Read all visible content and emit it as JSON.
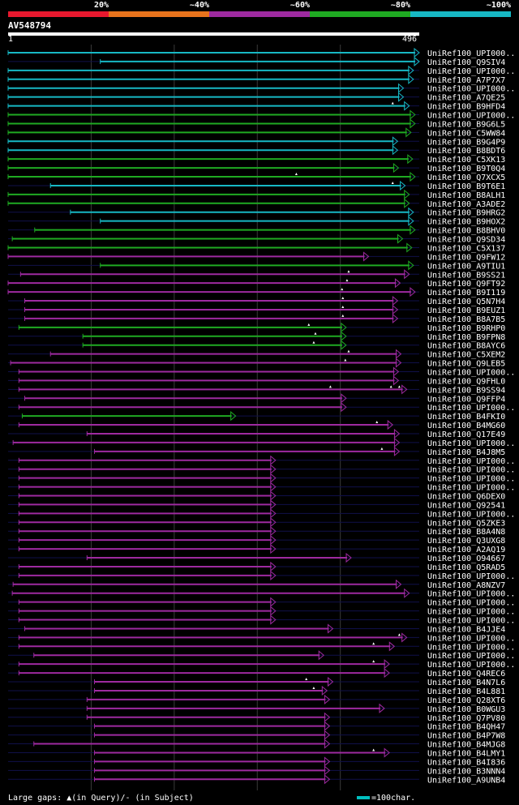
{
  "scale_bar": {
    "labels": [
      "20%",
      "~40%",
      "~60%",
      "~80%",
      "~100%"
    ],
    "colors": [
      "#e8182e",
      "#e8731c",
      "#9e2aa0",
      "#1faa22",
      "#17b8c4"
    ]
  },
  "query": {
    "id": "AV548794",
    "start": "1",
    "end": "496"
  },
  "footer": {
    "gaps_label": "Large gaps: ▲(in Query)/- (in Subject)",
    "legend_label": "=100char."
  },
  "chart_data": {
    "type": "alignment",
    "query_length": 496,
    "identity_colors": {
      "c": "#17b8c4",
      "g": "#1faa22",
      "p": "#9e2aa0"
    },
    "hits": [
      {
        "name": "UniRef100_UPI000..",
        "start": 1,
        "end": 496,
        "c": "c",
        "gaps": []
      },
      {
        "name": "UniRef100_Q9SIV4",
        "start": 112,
        "end": 496,
        "c": "c",
        "gaps": []
      },
      {
        "name": "UniRef100_UPI000..",
        "start": 1,
        "end": 489,
        "c": "c",
        "gaps": []
      },
      {
        "name": "UniRef100_A7P7X7",
        "start": 1,
        "end": 489,
        "c": "c",
        "gaps": []
      },
      {
        "name": "UniRef100_UPI000..",
        "start": 1,
        "end": 477,
        "c": "c",
        "gaps": []
      },
      {
        "name": "UniRef100_A7QE25",
        "start": 1,
        "end": 477,
        "c": "c",
        "gaps": []
      },
      {
        "name": "UniRef100_B9HFD4",
        "start": 1,
        "end": 484,
        "c": "c",
        "gaps": [
          464
        ]
      },
      {
        "name": "UniRef100_UPI000..",
        "start": 1,
        "end": 491,
        "c": "g",
        "gaps": []
      },
      {
        "name": "UniRef100_B9G6L5",
        "start": 1,
        "end": 491,
        "c": "g",
        "gaps": []
      },
      {
        "name": "UniRef100_C5WW84",
        "start": 1,
        "end": 486,
        "c": "g",
        "gaps": []
      },
      {
        "name": "UniRef100_B9G4P9",
        "start": 1,
        "end": 470,
        "c": "c",
        "gaps": []
      },
      {
        "name": "UniRef100_B8BDT6",
        "start": 1,
        "end": 470,
        "c": "c",
        "gaps": []
      },
      {
        "name": "UniRef100_C5XK13",
        "start": 1,
        "end": 488,
        "c": "g",
        "gaps": []
      },
      {
        "name": "UniRef100_B9T0Q4",
        "start": 1,
        "end": 471,
        "c": "g",
        "gaps": []
      },
      {
        "name": "UniRef100_Q7XCX5",
        "start": 1,
        "end": 491,
        "c": "g",
        "gaps": [
          348
        ]
      },
      {
        "name": "UniRef100_B9T6E1",
        "start": 52,
        "end": 479,
        "c": "c",
        "gaps": [
          464
        ]
      },
      {
        "name": "UniRef100_B8ALH1",
        "start": 1,
        "end": 484,
        "c": "g",
        "gaps": []
      },
      {
        "name": "UniRef100_A3ADE2",
        "start": 1,
        "end": 484,
        "c": "g",
        "gaps": []
      },
      {
        "name": "UniRef100_B9HRG2",
        "start": 76,
        "end": 489,
        "c": "c",
        "gaps": []
      },
      {
        "name": "UniRef100_B9HOX2",
        "start": 112,
        "end": 489,
        "c": "c",
        "gaps": []
      },
      {
        "name": "UniRef100_B8BHV0",
        "start": 33,
        "end": 491,
        "c": "g",
        "gaps": []
      },
      {
        "name": "UniRef100_Q9SD34",
        "start": 6,
        "end": 476,
        "c": "g",
        "gaps": []
      },
      {
        "name": "UniRef100_C5X137",
        "start": 1,
        "end": 487,
        "c": "g",
        "gaps": []
      },
      {
        "name": "UniRef100_Q9FW12",
        "start": 1,
        "end": 435,
        "c": "p",
        "gaps": []
      },
      {
        "name": "UniRef100_A9TIU1",
        "start": 112,
        "end": 489,
        "c": "g",
        "gaps": []
      },
      {
        "name": "UniRef100_B9SS21",
        "start": 16,
        "end": 484,
        "c": "p",
        "gaps": [
          411
        ]
      },
      {
        "name": "UniRef100_Q9FT92",
        "start": 1,
        "end": 473,
        "c": "p",
        "gaps": [
          409
        ]
      },
      {
        "name": "UniRef100_B9I119",
        "start": 1,
        "end": 491,
        "c": "p",
        "gaps": [
          403
        ]
      },
      {
        "name": "UniRef100_Q5N7H4",
        "start": 21,
        "end": 470,
        "c": "p",
        "gaps": [
          404
        ]
      },
      {
        "name": "UniRef100_B9EUZ1",
        "start": 21,
        "end": 470,
        "c": "p",
        "gaps": [
          404
        ]
      },
      {
        "name": "UniRef100_B8A7B5",
        "start": 21,
        "end": 470,
        "c": "p",
        "gaps": [
          404
        ]
      },
      {
        "name": "UniRef100_B9RHP0",
        "start": 14,
        "end": 408,
        "c": "g",
        "gaps": [
          363
        ]
      },
      {
        "name": "UniRef100_B9FPN8",
        "start": 91,
        "end": 408,
        "c": "g",
        "gaps": [
          371
        ]
      },
      {
        "name": "UniRef100_B8AYC6",
        "start": 91,
        "end": 408,
        "c": "g",
        "gaps": [
          369
        ]
      },
      {
        "name": "UniRef100_C5XEM2",
        "start": 52,
        "end": 474,
        "c": "p",
        "gaps": [
          411
        ]
      },
      {
        "name": "UniRef100_Q9LEB5",
        "start": 4,
        "end": 474,
        "c": "p",
        "gaps": [
          407
        ]
      },
      {
        "name": "UniRef100_UPI000..",
        "start": 14,
        "end": 471,
        "c": "p",
        "gaps": []
      },
      {
        "name": "UniRef100_Q9FHL0",
        "start": 14,
        "end": 471,
        "c": "p",
        "gaps": []
      },
      {
        "name": "UniRef100_B9SS94",
        "start": 14,
        "end": 481,
        "c": "p",
        "gaps": [
          389,
          462,
          472
        ]
      },
      {
        "name": "UniRef100_Q9FFP4",
        "start": 21,
        "end": 408,
        "c": "p",
        "gaps": []
      },
      {
        "name": "UniRef100_UPI000..",
        "start": 14,
        "end": 408,
        "c": "p",
        "gaps": []
      },
      {
        "name": "UniRef100_B4FKI0",
        "start": 18,
        "end": 275,
        "c": "g",
        "gaps": []
      },
      {
        "name": "UniRef100_B4MG60",
        "start": 14,
        "end": 464,
        "c": "p",
        "gaps": [
          445
        ]
      },
      {
        "name": "UniRef100_Q17E49",
        "start": 96,
        "end": 472,
        "c": "p",
        "gaps": []
      },
      {
        "name": "UniRef100_UPI000..",
        "start": 7,
        "end": 472,
        "c": "p",
        "gaps": []
      },
      {
        "name": "UniRef100_B4J8M5",
        "start": 105,
        "end": 472,
        "c": "p",
        "gaps": [
          451
        ]
      },
      {
        "name": "UniRef100_UPI000..",
        "start": 14,
        "end": 323,
        "c": "p",
        "gaps": []
      },
      {
        "name": "UniRef100_UPI000..",
        "start": 14,
        "end": 323,
        "c": "p",
        "gaps": []
      },
      {
        "name": "UniRef100_UPI000..",
        "start": 14,
        "end": 323,
        "c": "p",
        "gaps": []
      },
      {
        "name": "UniRef100_UPI000..",
        "start": 14,
        "end": 323,
        "c": "p",
        "gaps": []
      },
      {
        "name": "UniRef100_Q6DEX0",
        "start": 14,
        "end": 323,
        "c": "p",
        "gaps": []
      },
      {
        "name": "UniRef100_Q92541",
        "start": 14,
        "end": 323,
        "c": "p",
        "gaps": []
      },
      {
        "name": "UniRef100_UPI000..",
        "start": 14,
        "end": 323,
        "c": "p",
        "gaps": []
      },
      {
        "name": "UniRef100_Q5ZKE3",
        "start": 14,
        "end": 323,
        "c": "p",
        "gaps": []
      },
      {
        "name": "UniRef100_B8A4N8",
        "start": 14,
        "end": 323,
        "c": "p",
        "gaps": []
      },
      {
        "name": "UniRef100_Q3UXG8",
        "start": 14,
        "end": 323,
        "c": "p",
        "gaps": []
      },
      {
        "name": "UniRef100_A2AQ19",
        "start": 14,
        "end": 323,
        "c": "p",
        "gaps": []
      },
      {
        "name": "UniRef100_O94667",
        "start": 96,
        "end": 414,
        "c": "p",
        "gaps": []
      },
      {
        "name": "UniRef100_Q5RAD5",
        "start": 14,
        "end": 323,
        "c": "p",
        "gaps": []
      },
      {
        "name": "UniRef100_UPI000..",
        "start": 14,
        "end": 323,
        "c": "p",
        "gaps": []
      },
      {
        "name": "UniRef100_A8NZV7",
        "start": 7,
        "end": 474,
        "c": "p",
        "gaps": []
      },
      {
        "name": "UniRef100_UPI000..",
        "start": 6,
        "end": 484,
        "c": "p",
        "gaps": []
      },
      {
        "name": "UniRef100_UPI000..",
        "start": 14,
        "end": 323,
        "c": "p",
        "gaps": []
      },
      {
        "name": "UniRef100_UPI000..",
        "start": 14,
        "end": 323,
        "c": "p",
        "gaps": []
      },
      {
        "name": "UniRef100_UPI000..",
        "start": 14,
        "end": 323,
        "c": "p",
        "gaps": []
      },
      {
        "name": "UniRef100_B4JJE4",
        "start": 21,
        "end": 392,
        "c": "p",
        "gaps": []
      },
      {
        "name": "UniRef100_UPI000..",
        "start": 14,
        "end": 481,
        "c": "p",
        "gaps": [
          472
        ]
      },
      {
        "name": "UniRef100_UPI000..",
        "start": 14,
        "end": 466,
        "c": "p",
        "gaps": [
          441
        ]
      },
      {
        "name": "UniRef100_UPI000..",
        "start": 32,
        "end": 381,
        "c": "p",
        "gaps": []
      },
      {
        "name": "UniRef100_UPI000..",
        "start": 14,
        "end": 460,
        "c": "p",
        "gaps": [
          441
        ]
      },
      {
        "name": "UniRef100_Q4REC6",
        "start": 14,
        "end": 460,
        "c": "p",
        "gaps": []
      },
      {
        "name": "UniRef100_B4N7L6",
        "start": 105,
        "end": 392,
        "c": "p",
        "gaps": [
          360
        ]
      },
      {
        "name": "UniRef100_B4L881",
        "start": 105,
        "end": 385,
        "c": "p",
        "gaps": [
          369
        ]
      },
      {
        "name": "UniRef100_Q28XT6",
        "start": 96,
        "end": 388,
        "c": "p",
        "gaps": []
      },
      {
        "name": "UniRef100_B0WGU3",
        "start": 96,
        "end": 454,
        "c": "p",
        "gaps": []
      },
      {
        "name": "UniRef100_Q7PV80",
        "start": 96,
        "end": 388,
        "c": "p",
        "gaps": []
      },
      {
        "name": "UniRef100_B4QH47",
        "start": 105,
        "end": 388,
        "c": "p",
        "gaps": []
      },
      {
        "name": "UniRef100_B4P7W8",
        "start": 105,
        "end": 388,
        "c": "p",
        "gaps": []
      },
      {
        "name": "UniRef100_B4MJG8",
        "start": 32,
        "end": 388,
        "c": "p",
        "gaps": []
      },
      {
        "name": "UniRef100_B4LMY1",
        "start": 105,
        "end": 460,
        "c": "p",
        "gaps": [
          441
        ]
      },
      {
        "name": "UniRef100_B4I836",
        "start": 105,
        "end": 388,
        "c": "p",
        "gaps": []
      },
      {
        "name": "UniRef100_B3NNN4",
        "start": 105,
        "end": 388,
        "c": "p",
        "gaps": []
      },
      {
        "name": "UniRef100_A9UNB4",
        "start": 105,
        "end": 388,
        "c": "p",
        "gaps": []
      }
    ]
  }
}
